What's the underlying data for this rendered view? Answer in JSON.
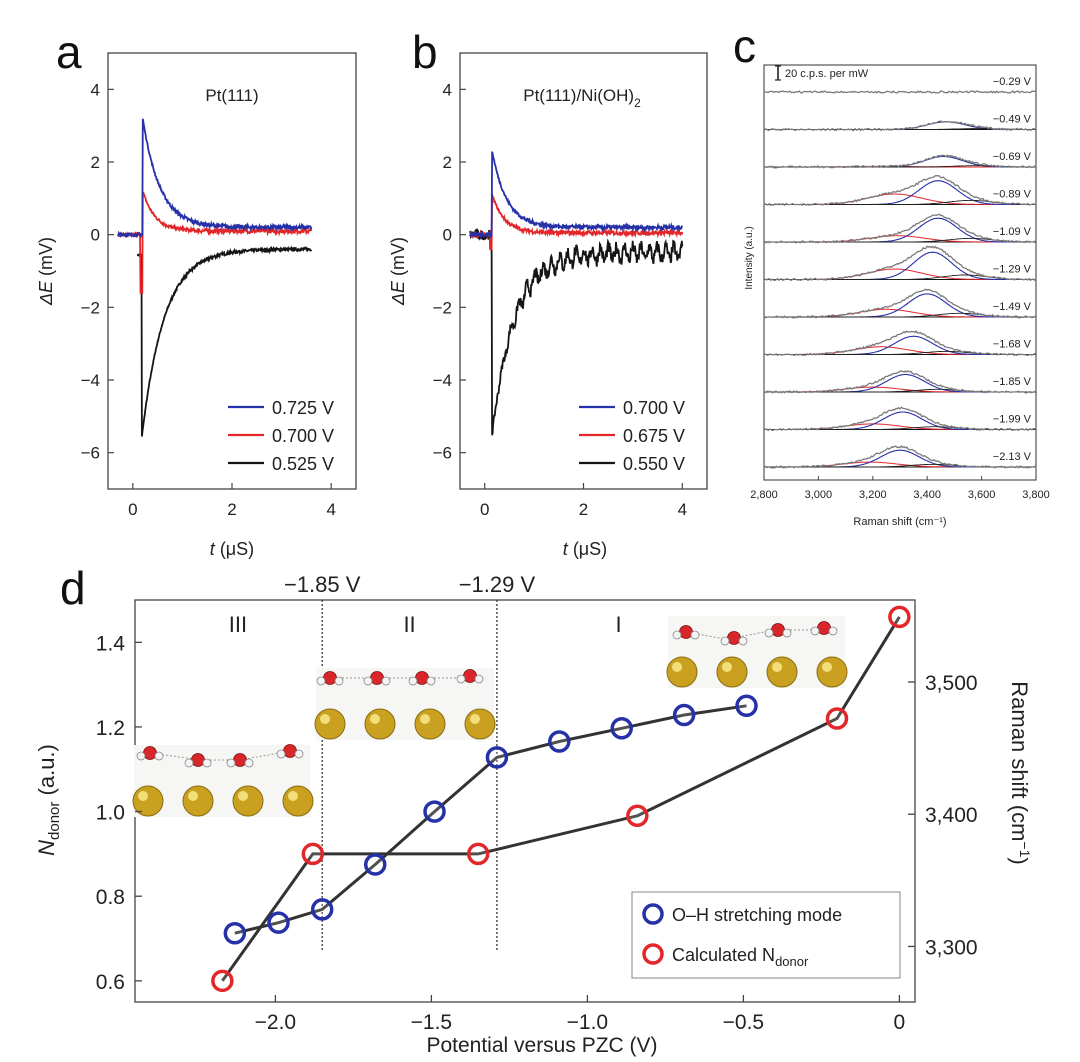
{
  "colors": {
    "blue": "#2631a8",
    "red": "#e3262a",
    "black": "#151515",
    "gray": "#7a7a7a",
    "axis": "#3c3c3c"
  },
  "chart_data": [
    {
      "panel": "a",
      "type": "line",
      "title": "Pt(111)",
      "xlabel": "t (μS)",
      "ylabel": "ΔE (mV)",
      "xlim": [
        -0.5,
        4.5
      ],
      "ylim": [
        -7,
        5
      ],
      "xticks": [
        "0",
        "2",
        "4"
      ],
      "yticks": [
        "−6",
        "−4",
        "−2",
        "0",
        "2",
        "4"
      ],
      "legend_position": "bottom-right",
      "series": [
        {
          "name": "0.725 V",
          "color_key": "blue",
          "t_start": -0.3,
          "t_spike": 0.2,
          "t_end": 3.6,
          "peak": 3.2,
          "baseline": 0.2,
          "decay": 0.35,
          "noise": 0.06
        },
        {
          "name": "0.700 V",
          "color_key": "red",
          "t_start": -0.3,
          "t_spike": 0.2,
          "t_end": 3.6,
          "peak": 1.2,
          "baseline": 0.1,
          "decay": 0.25,
          "noise": 0.06,
          "dip": -1.6
        },
        {
          "name": "0.525 V",
          "color_key": "black",
          "t_start": 0.1,
          "t_spike": 0.18,
          "t_end": 3.6,
          "peak": -5.6,
          "baseline": -0.4,
          "decay": 0.45,
          "noise": 0.04
        }
      ]
    },
    {
      "panel": "b",
      "type": "line",
      "title": "Pt(111)/Ni(OH)",
      "title_sub": "2",
      "xlabel": "t (μS)",
      "ylabel": "ΔE (mV)",
      "xlim": [
        -0.5,
        4.5
      ],
      "ylim": [
        -7,
        5
      ],
      "xticks": [
        "0",
        "2",
        "4"
      ],
      "yticks": [
        "−6",
        "−4",
        "−2",
        "0",
        "2",
        "4"
      ],
      "legend_position": "bottom-right",
      "series": [
        {
          "name": "0.700 V",
          "color_key": "blue",
          "t_start": -0.3,
          "t_spike": 0.15,
          "t_end": 4.0,
          "peak": 2.3,
          "baseline": 0.2,
          "decay": 0.3,
          "noise": 0.06
        },
        {
          "name": "0.675 V",
          "color_key": "red",
          "t_start": -0.3,
          "t_spike": 0.15,
          "t_end": 4.0,
          "peak": 1.1,
          "baseline": 0.05,
          "decay": 0.25,
          "noise": 0.06,
          "dip": -0.4
        },
        {
          "name": "0.550 V",
          "color_key": "black",
          "t_start": -0.3,
          "t_spike": 0.15,
          "t_end": 4.0,
          "peak": -5.5,
          "baseline": -0.5,
          "decay": 0.45,
          "noise": 0.18
        }
      ]
    },
    {
      "panel": "c",
      "type": "line",
      "xlabel": "Raman shift (cm⁻¹)",
      "ylabel": "Intensity (a.u.)",
      "xlim": [
        2800,
        3800
      ],
      "xticks": [
        "2,800",
        "3,000",
        "3,200",
        "3,400",
        "3,600",
        "3,800"
      ],
      "scale_bar_label": "20 c.p.s. per mW",
      "traces": [
        {
          "label": "−0.29 V",
          "blue_center": 3450,
          "blue_height": 0,
          "red_center": 3250,
          "red_height": 0
        },
        {
          "label": "−0.49 V",
          "blue_center": 3470,
          "blue_height": 0.55,
          "red_center": 3250,
          "red_height": 0
        },
        {
          "label": "−0.69 V",
          "blue_center": 3460,
          "blue_height": 0.75,
          "red_center": 3250,
          "red_height": 0.05
        },
        {
          "label": "−0.89 V",
          "blue_center": 3440,
          "blue_height": 1.7,
          "red_center": 3280,
          "red_height": 0.75
        },
        {
          "label": "−1.09 V",
          "blue_center": 3440,
          "blue_height": 1.7,
          "red_center": 3290,
          "red_height": 0.45
        },
        {
          "label": "−1.29 V",
          "blue_center": 3420,
          "blue_height": 1.95,
          "red_center": 3280,
          "red_height": 0.75
        },
        {
          "label": "−1.49 V",
          "blue_center": 3400,
          "blue_height": 1.65,
          "red_center": 3250,
          "red_height": 0.55
        },
        {
          "label": "−1.68 V",
          "blue_center": 3350,
          "blue_height": 1.3,
          "red_center": 3230,
          "red_height": 0.55
        },
        {
          "label": "−1.85 V",
          "blue_center": 3320,
          "blue_height": 1.25,
          "red_center": 3200,
          "red_height": 0.35
        },
        {
          "label": "−1.99 V",
          "blue_center": 3310,
          "blue_height": 1.25,
          "red_center": 3200,
          "red_height": 0.4
        },
        {
          "label": "−2.13 V",
          "blue_center": 3300,
          "blue_height": 1.2,
          "red_center": 3190,
          "red_height": 0.35
        }
      ]
    },
    {
      "panel": "d",
      "type": "line",
      "xlabel": "Potential versus PZC (V)",
      "ylabel_main": "N",
      "ylabel_sub": "donor",
      "ylabel_unit": " (a.u.)",
      "y2label": "Raman shift (cm",
      "y2label_sup": "−1",
      "y2label_end": ")",
      "xlim": [
        -2.45,
        0.05
      ],
      "ylim": [
        0.55,
        1.5
      ],
      "y2lim": [
        3258,
        3562
      ],
      "xticks": [
        {
          "v": -2.0,
          "label": "−2.0"
        },
        {
          "v": -1.5,
          "label": "−1.5"
        },
        {
          "v": -1.0,
          "label": "−1.0"
        },
        {
          "v": -0.5,
          "label": "−0.5"
        },
        {
          "v": 0.0,
          "label": "0"
        }
      ],
      "yticks": [
        {
          "v": 0.6,
          "label": "0.6"
        },
        {
          "v": 0.8,
          "label": "0.8"
        },
        {
          "v": 1.0,
          "label": "1.0"
        },
        {
          "v": 1.2,
          "label": "1.2"
        },
        {
          "v": 1.4,
          "label": "1.4"
        }
      ],
      "y2ticks": [
        {
          "v": 3300,
          "label": "3,300"
        },
        {
          "v": 3400,
          "label": "3,400"
        },
        {
          "v": 3500,
          "label": "3,500"
        }
      ],
      "regions": [
        "III",
        "II",
        "I"
      ],
      "vlines": [
        {
          "v": -1.85,
          "label": "−1.85 V"
        },
        {
          "v": -1.29,
          "label": "−1.29 V"
        }
      ],
      "legend_position": "bottom-right",
      "series": [
        {
          "name": "O–H stretching mode",
          "color_key": "blue",
          "axis": "right",
          "x": [
            -2.13,
            -1.99,
            -1.85,
            -1.68,
            -1.49,
            -1.29,
            -1.09,
            -0.89,
            -0.69,
            -0.49
          ],
          "y": [
            3310,
            3318,
            3328,
            3362,
            3402,
            3443,
            3455,
            3465,
            3475,
            3482
          ]
        },
        {
          "name": "Calculated N",
          "name_sub": "donor",
          "color_key": "red",
          "axis": "left",
          "x": [
            -2.17,
            -1.88,
            -1.35,
            -0.84,
            -0.2,
            0.0
          ],
          "y": [
            0.6,
            0.9,
            0.9,
            0.99,
            1.22,
            1.46
          ]
        }
      ]
    }
  ],
  "panel_labels": [
    "a",
    "b",
    "c",
    "d"
  ]
}
